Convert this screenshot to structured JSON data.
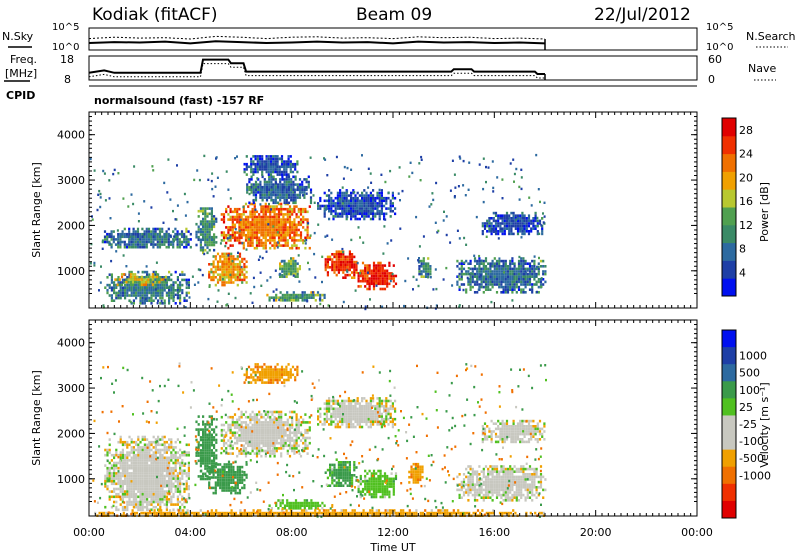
{
  "header": {
    "station": "Kodiak (fitACF)",
    "beam": "Beam 09",
    "date": "22/Jul/2012"
  },
  "panel_labels": {
    "nsky": "N.Sky",
    "nsearch": "N.Search",
    "freq_line1": "Freq.",
    "freq_line2": "[MHz]",
    "nave": "Nave",
    "cpid": "CPID",
    "cpid_value": "normalsound (fast) -157 RF",
    "noise_left_top": "10^5",
    "noise_left_bottom": "10^0",
    "noise_right_top": "10^5",
    "noise_right_bottom": "10^0",
    "freq_top": "18",
    "freq_bottom": "8",
    "nave_top": "60",
    "nave_bottom": "0"
  },
  "colors": {
    "power": [
      "#0010f0",
      "#1e3fa6",
      "#2d6aa0",
      "#3a8a66",
      "#50a050",
      "#b8c830",
      "#f0a000",
      "#f07000",
      "#f03000",
      "#e00000"
    ],
    "velocity": [
      "#e00000",
      "#f03000",
      "#f07000",
      "#f0a000",
      "#c8c8c0",
      "#c8c8c0",
      "#50c020",
      "#3a9a4a",
      "#2d6aa0",
      "#1e3fa6",
      "#0010f0"
    ]
  },
  "chart_data": [
    {
      "type": "heatmap",
      "panel": "power",
      "xlabel": "",
      "ylabel": "Slant Range [km]",
      "xlim": [
        "00:00",
        "24:00"
      ],
      "ylim": [
        180,
        4500
      ],
      "yticks": [
        "1000",
        "2000",
        "3000",
        "4000"
      ],
      "colorbar_label": "Power [dB]",
      "colorbar_ticks": [
        "4",
        "8",
        "12",
        "16",
        "20",
        "24",
        "28"
      ],
      "colorbar_range": [
        0,
        30
      ],
      "data_end": "18:00",
      "regions": [
        {
          "t0": 0.6,
          "t1": 3.9,
          "r0": 300,
          "r1": 1000,
          "value": 9
        },
        {
          "t0": 1.0,
          "t1": 3.0,
          "r0": 700,
          "r1": 950,
          "value": 17
        },
        {
          "t0": 0.5,
          "t1": 4.0,
          "r0": 1500,
          "r1": 1950,
          "value": 8
        },
        {
          "t0": 4.2,
          "t1": 5.0,
          "r0": 1400,
          "r1": 2400,
          "value": 11
        },
        {
          "t0": 4.7,
          "t1": 6.2,
          "r0": 700,
          "r1": 1400,
          "value": 20
        },
        {
          "t0": 5.2,
          "t1": 8.7,
          "r0": 1500,
          "r1": 2500,
          "value": 22
        },
        {
          "t0": 6.2,
          "t1": 8.8,
          "r0": 2500,
          "r1": 3100,
          "value": 7
        },
        {
          "t0": 6.1,
          "t1": 8.2,
          "r0": 3100,
          "r1": 3550,
          "value": 6
        },
        {
          "t0": 7.5,
          "t1": 8.3,
          "r0": 850,
          "r1": 1300,
          "value": 13
        },
        {
          "t0": 9.0,
          "t1": 12.1,
          "r0": 2150,
          "r1": 2800,
          "value": 5
        },
        {
          "t0": 9.3,
          "t1": 10.6,
          "r0": 850,
          "r1": 1450,
          "value": 26
        },
        {
          "t0": 10.6,
          "t1": 12.1,
          "r0": 600,
          "r1": 1200,
          "value": 27
        },
        {
          "t0": 7.0,
          "t1": 9.3,
          "r0": 350,
          "r1": 550,
          "value": 12
        },
        {
          "t0": 13.0,
          "t1": 13.5,
          "r0": 850,
          "r1": 1300,
          "value": 10
        },
        {
          "t0": 14.5,
          "t1": 18.0,
          "r0": 550,
          "r1": 1300,
          "value": 8
        },
        {
          "t0": 15.5,
          "t1": 18.0,
          "r0": 1800,
          "r1": 2300,
          "value": 5
        }
      ]
    },
    {
      "type": "heatmap",
      "panel": "velocity",
      "xlabel": "Time UT",
      "ylabel": "Slant Range [km]",
      "xlim": [
        "00:00",
        "24:00"
      ],
      "ylim": [
        180,
        4500
      ],
      "xticks": [
        "00:00",
        "04:00",
        "08:00",
        "12:00",
        "16:00",
        "20:00",
        "00:00"
      ],
      "yticks": [
        "1000",
        "2000",
        "3000",
        "4000"
      ],
      "colorbar_label": "Velocity [m s⁻¹]",
      "colorbar_ticks": [
        "1000",
        "500",
        "100",
        "25",
        "-25",
        "-100",
        "-500",
        "-1000"
      ],
      "data_end": "18:00",
      "regions": [
        {
          "t0": 0.6,
          "t1": 3.9,
          "r0": 300,
          "r1": 1950,
          "value": 0
        },
        {
          "t0": 4.2,
          "t1": 5.0,
          "r0": 1000,
          "r1": 2400,
          "value": 200
        },
        {
          "t0": 4.7,
          "t1": 6.2,
          "r0": 700,
          "r1": 1400,
          "value": 150
        },
        {
          "t0": 5.2,
          "t1": 8.7,
          "r0": 1500,
          "r1": 2500,
          "value": 0
        },
        {
          "t0": 6.1,
          "t1": 8.2,
          "r0": 3100,
          "r1": 3550,
          "value": -80
        },
        {
          "t0": 9.0,
          "t1": 12.1,
          "r0": 2150,
          "r1": 2800,
          "value": 0
        },
        {
          "t0": 9.3,
          "t1": 10.6,
          "r0": 850,
          "r1": 1450,
          "value": 120
        },
        {
          "t0": 10.6,
          "t1": 12.1,
          "r0": 600,
          "r1": 1200,
          "value": 60
        },
        {
          "t0": 12.6,
          "t1": 13.2,
          "r0": 900,
          "r1": 1350,
          "value": -80
        },
        {
          "t0": 7.0,
          "t1": 9.3,
          "r0": 350,
          "r1": 550,
          "value": 60
        },
        {
          "t0": 14.5,
          "t1": 18.0,
          "r0": 550,
          "r1": 1300,
          "value": 0
        },
        {
          "t0": 15.5,
          "t1": 18.0,
          "r0": 1800,
          "r1": 2300,
          "value": 0
        },
        {
          "t0": 0.2,
          "t1": 18.0,
          "r0": 180,
          "r1": 330,
          "value": -60
        }
      ]
    },
    {
      "type": "line",
      "panel": "noise",
      "series": [
        {
          "values": [
            2.6,
            2.9,
            2.7,
            2.8,
            2.5,
            3.1,
            2.9,
            2.6,
            2.9,
            3.0,
            2.7,
            2.8,
            2.6,
            3.0,
            2.8,
            2.9,
            2.6,
            2.7,
            2.5
          ]
        },
        {
          "values": [
            1.6,
            1.8,
            1.7,
            1.9,
            1.5,
            2.0,
            1.8,
            1.6,
            1.7,
            1.9,
            1.7,
            1.8,
            1.5,
            1.9,
            1.7,
            1.8,
            1.6,
            1.7,
            1.5
          ]
        }
      ]
    },
    {
      "type": "line",
      "panel": "frequency",
      "series": [
        {
          "t": [
            0.0,
            0.6,
            1.0,
            4.4,
            4.5,
            5.5,
            5.6,
            6.1,
            6.2,
            14.3,
            14.4,
            15.1,
            15.2,
            17.6,
            17.7,
            18.0
          ],
          "values": [
            11,
            12,
            11,
            11,
            16.5,
            16.5,
            15,
            15,
            11.5,
            11.5,
            12.5,
            12.5,
            11.5,
            11.5,
            10.5,
            10.5
          ]
        }
      ]
    }
  ]
}
